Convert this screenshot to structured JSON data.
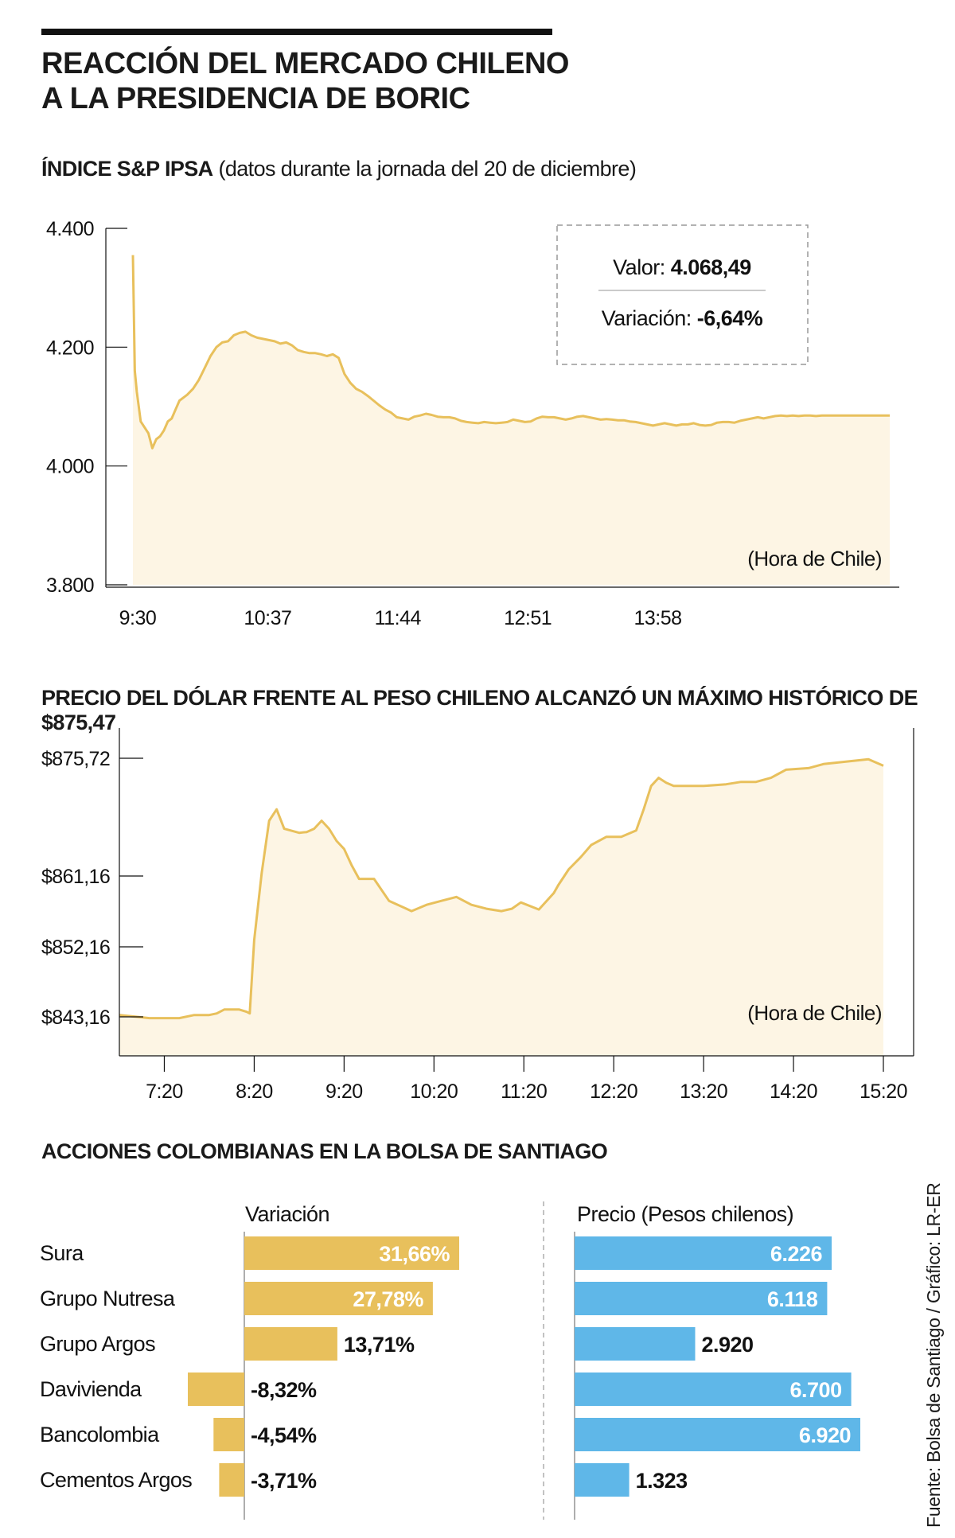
{
  "title": [
    "REACCIÓN DEL MERCADO CHILENO",
    "A LA PRESIDENCIA DE BORIC"
  ],
  "colors": {
    "gold": "#e8c05c",
    "gold_fill": "#fdf5e4",
    "blue": "#5fb7e8",
    "ink": "#111111"
  },
  "ipsa": {
    "title_bold": "ÍNDICE S&P IPSA",
    "title_note": " (datos durante la jornada del 20 de diciembre)",
    "note": "(Hora de Chile)",
    "box": {
      "valor_label": "Valor: ",
      "valor": "4.068,49",
      "variacion_label": "Variación: ",
      "variacion": "-6,64%"
    }
  },
  "dolar": {
    "title": "PRECIO DEL DÓLAR FRENTE AL PESO CHILENO ALCANZÓ UN MÁXIMO HISTÓRICO DE $875,47",
    "note": "(Hora de Chile)"
  },
  "acciones": {
    "title": "ACCIONES COLOMBIANAS EN LA BOLSA DE SANTIAGO",
    "col_variacion": "Variación",
    "col_precio": "Precio (Pesos chilenos)"
  },
  "fuente": "Fuente: Bolsa de Santiago / Gráfico: LR-ER",
  "chart_data": [
    {
      "type": "area",
      "title": "ÍNDICE S&P IPSA",
      "x_ticks": [
        "9:30",
        "10:37",
        "11:44",
        "12:51",
        "13:58"
      ],
      "y_ticks": [
        "4.400",
        "4.200",
        "4.000",
        "3.800"
      ],
      "ylim": [
        3800,
        4400
      ],
      "x_range_minutes": [
        570,
        960
      ],
      "x": [
        570,
        571,
        572,
        574,
        576,
        578,
        580,
        582,
        584,
        586,
        588,
        590,
        592,
        594,
        596,
        598,
        601,
        604,
        607,
        610,
        613,
        616,
        619,
        622,
        625,
        628,
        631,
        634,
        637,
        640,
        643,
        646,
        649,
        652,
        655,
        658,
        661,
        664,
        667,
        670,
        673,
        676,
        679,
        682,
        685,
        688,
        691,
        694,
        697,
        700,
        703,
        706,
        709,
        712,
        715,
        718,
        721,
        724,
        727,
        730,
        733,
        736,
        739,
        742,
        745,
        748,
        751,
        754,
        757,
        760,
        763,
        766,
        769,
        772,
        775,
        778,
        781,
        784,
        787,
        790,
        793,
        796,
        799,
        802,
        805,
        808,
        811,
        814,
        817,
        820,
        823,
        826,
        829,
        832,
        835,
        838,
        841,
        844,
        847,
        850,
        853,
        856,
        859,
        862,
        865,
        868,
        871,
        874,
        877,
        880,
        883,
        886,
        889,
        892,
        895,
        898,
        901,
        904,
        907,
        910,
        913,
        916,
        919,
        922,
        925,
        928,
        931,
        934,
        937,
        940,
        943,
        946,
        949,
        952,
        955,
        958,
        960
      ],
      "y": [
        4355,
        4160,
        4125,
        4075,
        4065,
        4055,
        4030,
        4045,
        4050,
        4060,
        4075,
        4080,
        4095,
        4110,
        4115,
        4120,
        4130,
        4145,
        4165,
        4185,
        4200,
        4208,
        4210,
        4220,
        4224,
        4226,
        4220,
        4216,
        4214,
        4212,
        4210,
        4206,
        4208,
        4203,
        4195,
        4192,
        4190,
        4190,
        4188,
        4185,
        4188,
        4182,
        4155,
        4140,
        4130,
        4125,
        4118,
        4110,
        4102,
        4095,
        4090,
        4082,
        4080,
        4078,
        4083,
        4085,
        4088,
        4086,
        4083,
        4082,
        4082,
        4080,
        4076,
        4074,
        4073,
        4072,
        4074,
        4073,
        4072,
        4073,
        4074,
        4078,
        4076,
        4074,
        4075,
        4080,
        4083,
        4082,
        4082,
        4080,
        4078,
        4080,
        4083,
        4084,
        4082,
        4080,
        4078,
        4079,
        4078,
        4077,
        4077,
        4075,
        4074,
        4072,
        4070,
        4068,
        4070,
        4072,
        4070,
        4068,
        4070,
        4070,
        4072,
        4069,
        4068,
        4069,
        4073,
        4074,
        4074,
        4073,
        4076,
        4078,
        4080,
        4082,
        4080,
        4082,
        4084,
        4085,
        4084,
        4085,
        4084,
        4085,
        4085,
        4084,
        4085,
        4085,
        4085,
        4085,
        4085,
        4085,
        4085,
        4085,
        4085,
        4085,
        4085,
        4085,
        4085
      ]
    },
    {
      "type": "area",
      "title": "PRECIO DEL DÓLAR FRENTE AL PESO CHILENO ALCANZÓ UN MÁXIMO HISTÓRICO DE $875,47",
      "x_ticks": [
        "7:20",
        "8:20",
        "9:20",
        "10:20",
        "11:20",
        "12:20",
        "13:20",
        "14:20",
        "15:20"
      ],
      "y_ticks": [
        "$875,72",
        "$861,16",
        "$852,16",
        "$843,16"
      ],
      "y_tick_values": [
        875.72,
        861.16,
        852.16,
        843.16
      ],
      "x_range_minutes": [
        410,
        920
      ],
      "x": [
        410,
        420,
        430,
        440,
        445,
        450,
        460,
        470,
        475,
        480,
        490,
        495,
        497,
        500,
        505,
        510,
        515,
        520,
        530,
        535,
        540,
        545,
        550,
        555,
        560,
        565,
        570,
        575,
        580,
        590,
        605,
        615,
        625,
        635,
        645,
        655,
        665,
        672,
        678,
        690,
        700,
        703,
        710,
        718,
        725,
        735,
        745,
        755,
        760,
        765,
        770,
        775,
        780,
        800,
        815,
        825,
        835,
        845,
        850,
        855,
        870,
        880,
        910,
        920
      ],
      "y": [
        843.4,
        843.2,
        843.0,
        843.0,
        843.0,
        843.0,
        843.4,
        843.4,
        843.6,
        844.1,
        844.1,
        843.8,
        843.6,
        853.0,
        861.5,
        868.0,
        869.4,
        867.0,
        866.5,
        866.6,
        867.0,
        868.0,
        867.0,
        865.5,
        864.5,
        862.5,
        860.8,
        860.8,
        860.8,
        858.0,
        856.7,
        857.5,
        858.0,
        858.5,
        857.5,
        857.0,
        856.7,
        857.0,
        857.8,
        856.9,
        859.0,
        860.0,
        862.0,
        863.5,
        865.0,
        866.0,
        866.0,
        866.8,
        869.4,
        872.3,
        873.3,
        872.7,
        872.3,
        872.3,
        872.5,
        872.8,
        872.8,
        873.3,
        873.8,
        874.3,
        874.5,
        875.0,
        875.6,
        874.8
      ]
    },
    {
      "type": "bar",
      "title": "Variación",
      "categories": [
        "Sura",
        "Grupo Nutresa",
        "Grupo Argos",
        "Davivienda",
        "Bancolombia",
        "Cementos Argos"
      ],
      "values": [
        31.66,
        27.78,
        13.71,
        -8.32,
        -4.54,
        -3.71
      ],
      "labels": [
        "31,66%",
        "27,78%",
        "13,71%",
        "-8,32%",
        "-4,54%",
        "-3,71%"
      ]
    },
    {
      "type": "bar",
      "title": "Precio (Pesos chilenos)",
      "categories": [
        "Sura",
        "Grupo Nutresa",
        "Grupo Argos",
        "Davivienda",
        "Bancolombia",
        "Cementos Argos"
      ],
      "values": [
        6226,
        6118,
        2920,
        6700,
        6920,
        1323
      ],
      "labels": [
        "6.226",
        "6.118",
        "2.920",
        "6.700",
        "6.920",
        "1.323"
      ]
    }
  ]
}
